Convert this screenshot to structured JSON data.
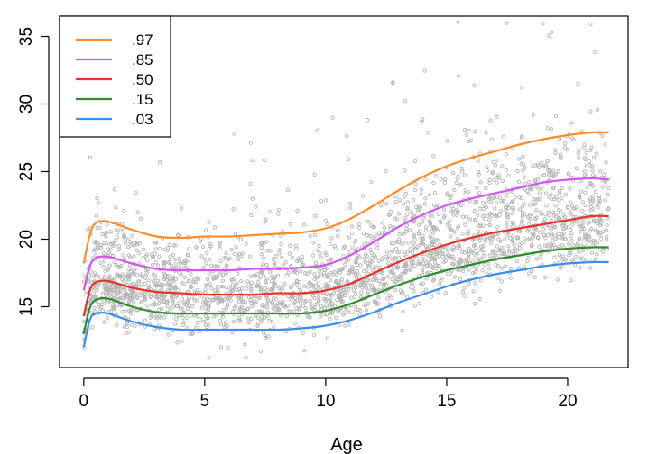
{
  "chart_data": {
    "type": "line",
    "title": "",
    "xlabel": "Age",
    "ylabel": "",
    "xlim": [
      -1,
      22.5
    ],
    "ylim": [
      10.5,
      36.5
    ],
    "x_ticks": [
      0,
      5,
      10,
      15,
      20
    ],
    "x_tick_labels": [
      "0",
      "5",
      "10",
      "15",
      "20"
    ],
    "y_ticks": [
      15,
      20,
      25,
      30,
      35
    ],
    "y_tick_labels": [
      "15",
      "20",
      "25",
      "30",
      "35"
    ],
    "grid": false,
    "legend_position": "top-left",
    "x": [
      0,
      0.25,
      0.5,
      1,
      2,
      3,
      4,
      5,
      6,
      7,
      8,
      9,
      10,
      11,
      12,
      13,
      14,
      15,
      16,
      17,
      18,
      19,
      20,
      21,
      21.7
    ],
    "series": [
      {
        "name": ".97",
        "color": "#FF8C2A",
        "values": [
          18.2,
          20.3,
          21.2,
          21.3,
          20.7,
          20.2,
          20.1,
          20.2,
          20.2,
          20.3,
          20.4,
          20.5,
          20.8,
          21.5,
          22.5,
          23.6,
          24.6,
          25.4,
          26.0,
          26.5,
          27.0,
          27.4,
          27.7,
          27.9,
          27.9
        ]
      },
      {
        "name": ".85",
        "color": "#D257F0",
        "values": [
          16.2,
          18.0,
          18.6,
          18.7,
          18.2,
          17.8,
          17.7,
          17.7,
          17.7,
          17.8,
          17.8,
          17.9,
          18.1,
          18.8,
          19.8,
          20.9,
          21.8,
          22.5,
          23.0,
          23.4,
          23.8,
          24.2,
          24.4,
          24.5,
          24.4
        ]
      },
      {
        "name": ".50",
        "color": "#E5332B",
        "values": [
          14.3,
          16.2,
          16.8,
          16.9,
          16.4,
          16.1,
          16.0,
          15.9,
          15.9,
          15.9,
          16.0,
          16.0,
          16.2,
          16.7,
          17.5,
          18.3,
          19.0,
          19.6,
          20.1,
          20.5,
          20.8,
          21.1,
          21.4,
          21.7,
          21.7
        ]
      },
      {
        "name": ".15",
        "color": "#2E8B2E",
        "values": [
          13.0,
          14.9,
          15.5,
          15.6,
          15.0,
          14.6,
          14.5,
          14.5,
          14.5,
          14.5,
          14.5,
          14.5,
          14.7,
          15.2,
          15.9,
          16.6,
          17.2,
          17.7,
          18.1,
          18.5,
          18.8,
          19.1,
          19.3,
          19.4,
          19.4
        ]
      },
      {
        "name": ".03",
        "color": "#3B8EEA",
        "values": [
          12.0,
          14.0,
          14.5,
          14.5,
          13.9,
          13.5,
          13.3,
          13.3,
          13.3,
          13.3,
          13.3,
          13.4,
          13.6,
          14.0,
          14.6,
          15.3,
          15.9,
          16.5,
          17.0,
          17.4,
          17.7,
          18.0,
          18.2,
          18.3,
          18.3
        ]
      }
    ],
    "scatter": {
      "color": "#B4B4B4",
      "description_points": "bmi observations by age"
    }
  }
}
